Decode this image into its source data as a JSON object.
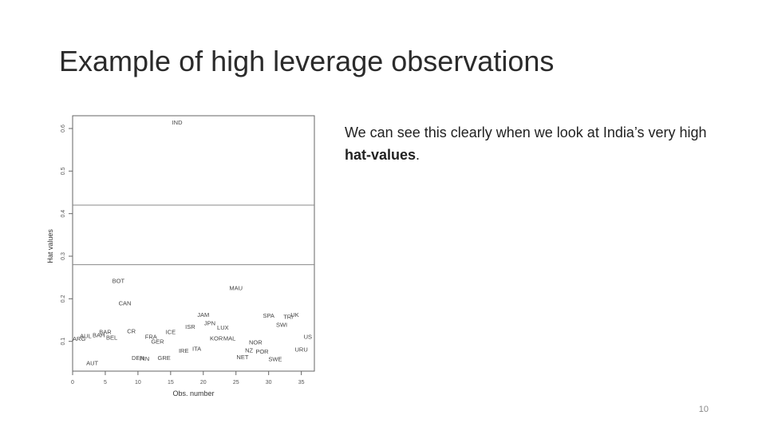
{
  "slide": {
    "title": "Example of high leverage observations",
    "text_before": "We can see this clearly when we look at India’s very high ",
    "text_bold": "hat-values",
    "text_after": ".",
    "page_number": "10"
  },
  "chart_data": {
    "type": "scatter",
    "xlabel": "Obs. number",
    "ylabel": "Hat values",
    "xlim": [
      0,
      37
    ],
    "ylim": [
      0.03,
      0.63
    ],
    "xticks": [
      "0",
      "5",
      "10",
      "15",
      "20",
      "25",
      "30",
      "35"
    ],
    "xtick_values": [
      0,
      5,
      10,
      15,
      20,
      25,
      30,
      35
    ],
    "yticks": [
      "0.1",
      "0.2",
      "0.3",
      "0.4",
      "0.5",
      "0.6"
    ],
    "ytick_values": [
      0.1,
      0.2,
      0.3,
      0.4,
      0.5,
      0.6
    ],
    "reference_lines": [
      0.28,
      0.42
    ],
    "points": [
      {
        "label": "ARG",
        "x": 1,
        "y": 0.107
      },
      {
        "label": "AUL",
        "x": 2,
        "y": 0.113
      },
      {
        "label": "AUT",
        "x": 3,
        "y": 0.05
      },
      {
        "label": "BAH",
        "x": 4,
        "y": 0.115
      },
      {
        "label": "BAR",
        "x": 5,
        "y": 0.123
      },
      {
        "label": "BEL",
        "x": 6,
        "y": 0.11
      },
      {
        "label": "BOT",
        "x": 7,
        "y": 0.243
      },
      {
        "label": "CAN",
        "x": 8,
        "y": 0.19
      },
      {
        "label": "CR",
        "x": 9,
        "y": 0.125
      },
      {
        "label": "DEN",
        "x": 10,
        "y": 0.062
      },
      {
        "label": "FIN",
        "x": 11,
        "y": 0.06
      },
      {
        "label": "FRA",
        "x": 12,
        "y": 0.112
      },
      {
        "label": "GER",
        "x": 13,
        "y": 0.1
      },
      {
        "label": "GRE",
        "x": 14,
        "y": 0.062
      },
      {
        "label": "ICE",
        "x": 15,
        "y": 0.123
      },
      {
        "label": "IND",
        "x": 16,
        "y": 0.615
      },
      {
        "label": "IRE",
        "x": 17,
        "y": 0.079
      },
      {
        "label": "ISR",
        "x": 18,
        "y": 0.135
      },
      {
        "label": "ITA",
        "x": 19,
        "y": 0.083
      },
      {
        "label": "JAM",
        "x": 20,
        "y": 0.163
      },
      {
        "label": "JPN",
        "x": 21,
        "y": 0.143
      },
      {
        "label": "KOR",
        "x": 22,
        "y": 0.108
      },
      {
        "label": "LUX",
        "x": 23,
        "y": 0.133
      },
      {
        "label": "MAL",
        "x": 24,
        "y": 0.108
      },
      {
        "label": "MAU",
        "x": 25,
        "y": 0.226
      },
      {
        "label": "NET",
        "x": 26,
        "y": 0.064
      },
      {
        "label": "NZ",
        "x": 27,
        "y": 0.08
      },
      {
        "label": "NOR",
        "x": 28,
        "y": 0.098
      },
      {
        "label": "POR",
        "x": 29,
        "y": 0.077
      },
      {
        "label": "SPA",
        "x": 30,
        "y": 0.161
      },
      {
        "label": "SWE",
        "x": 31,
        "y": 0.059
      },
      {
        "label": "SWI",
        "x": 32,
        "y": 0.14
      },
      {
        "label": "TRI",
        "x": 33,
        "y": 0.158
      },
      {
        "label": "UK",
        "x": 34,
        "y": 0.163
      },
      {
        "label": "URU",
        "x": 35,
        "y": 0.082
      },
      {
        "label": "US",
        "x": 36,
        "y": 0.112
      }
    ]
  }
}
